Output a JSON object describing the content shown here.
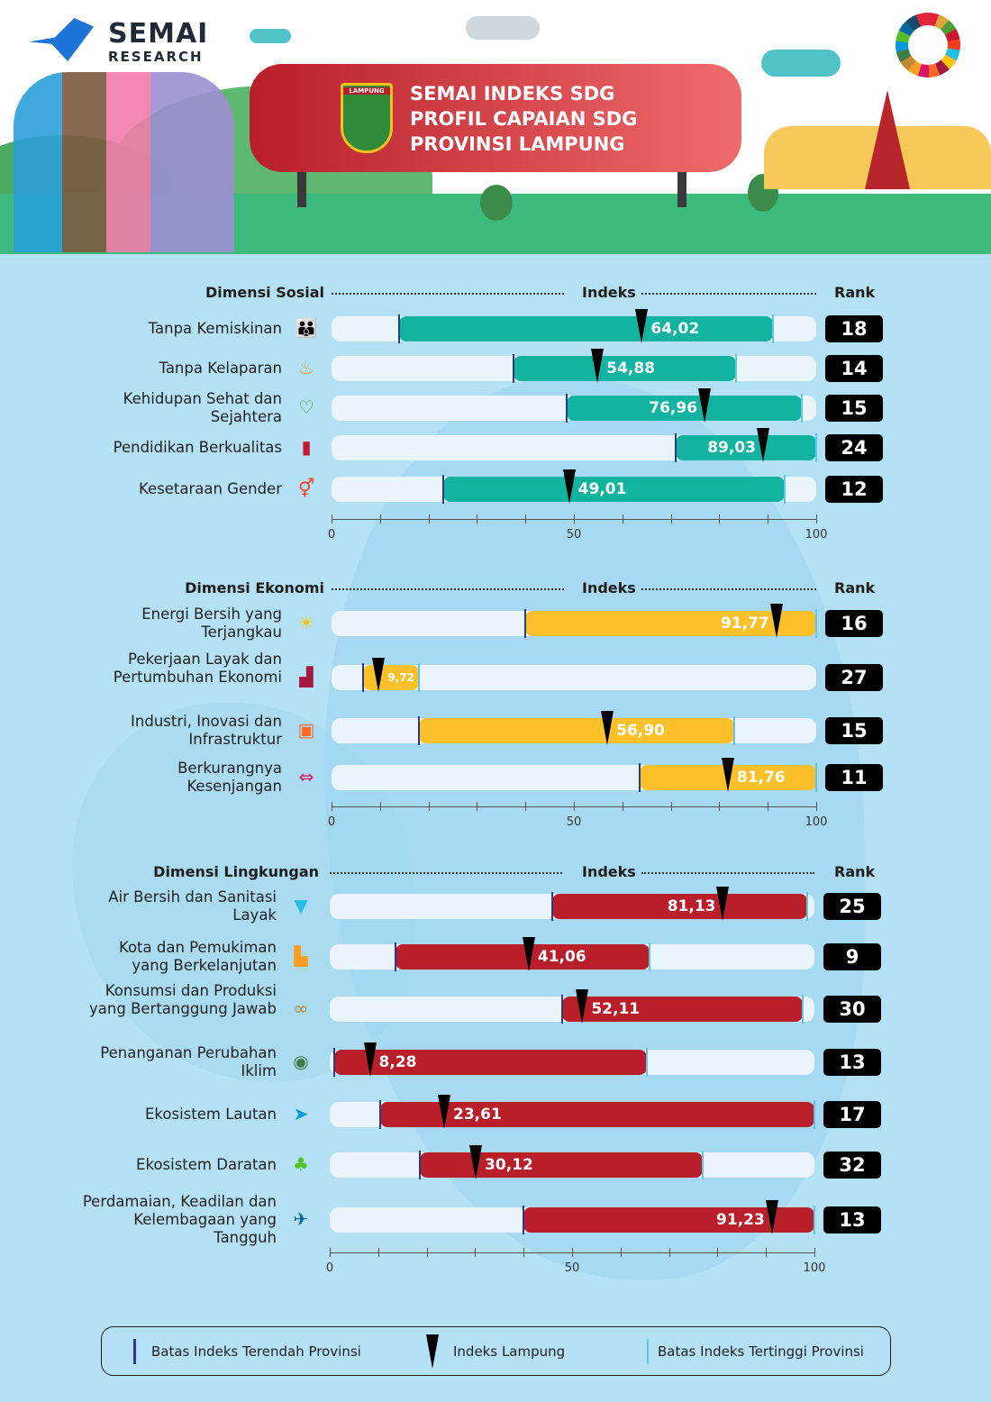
{
  "header": {
    "logo": {
      "name": "SEMAI",
      "sub": "RESEARCH"
    },
    "crest_text": "LAMPUNG",
    "title_lines": [
      "SEMAI INDEKS SDG",
      "PROFIL CAPAIAN SDG",
      "PROVINSI LAMPUNG"
    ]
  },
  "colors": {
    "sosial": "#12b3a0",
    "ekonomi": "#fcc02a",
    "lingkungan": "#b81f2b",
    "track": "#eaf5fb",
    "min_line": "#2a3a8a",
    "max_line": "#5ec6e8",
    "background": "#b4e1f5"
  },
  "chart_data": {
    "type": "range-bar",
    "xlim": [
      0,
      100
    ],
    "xticks": [
      "0",
      "50",
      "100"
    ],
    "column_index": "Indeks",
    "column_rank": "Rank",
    "sections": [
      {
        "title": "Dimensi Sosial",
        "color": "#12b3a0",
        "rows": [
          {
            "label": "Tanpa Kemiskinan",
            "icon": "people-icon",
            "min": 14,
            "max": 91,
            "value": 64.02,
            "value_label": "64,02",
            "rank": "18"
          },
          {
            "label": "Tanpa Kelaparan",
            "icon": "bowl-icon",
            "min": 37.5,
            "max": 83.5,
            "value": 54.88,
            "value_label": "54,88",
            "rank": "14"
          },
          {
            "label": "Kehidupan Sehat dan Sejahtera",
            "icon": "heartbeat-icon",
            "min": 48.5,
            "max": 97,
            "value": 76.96,
            "value_label": "76,96",
            "rank": "15"
          },
          {
            "label": "Pendidikan Berkualitas",
            "icon": "book-icon",
            "min": 71,
            "max": 100,
            "value": 89.03,
            "value_label": "89,03",
            "rank": "24"
          },
          {
            "label": "Kesetaraan Gender",
            "icon": "gender-icon",
            "min": 23,
            "max": 93.5,
            "value": 49.01,
            "value_label": "49,01",
            "rank": "12"
          }
        ]
      },
      {
        "title": "Dimensi Ekonomi",
        "color": "#fcc02a",
        "rows": [
          {
            "label": "Energi Bersih yang Terjangkau",
            "icon": "sun-icon",
            "min": 40,
            "max": 100,
            "value": 91.77,
            "value_label": "91,77",
            "rank": "16"
          },
          {
            "label": "Pekerjaan Layak dan Pertumbuhan Ekonomi",
            "icon": "growth-chart-icon",
            "min": 6.5,
            "max": 18,
            "value": 9.72,
            "value_label": "9,72",
            "rank": "27"
          },
          {
            "label": "Industri, Inovasi dan Infrastruktur",
            "icon": "cubes-icon",
            "min": 18,
            "max": 83,
            "value": 56.9,
            "value_label": "56,90",
            "rank": "15"
          },
          {
            "label": "Berkurangnya Kesenjangan",
            "icon": "equality-arrows-icon",
            "min": 63.5,
            "max": 100,
            "value": 81.76,
            "value_label": "81,76",
            "rank": "11"
          }
        ]
      },
      {
        "title": "Dimensi Lingkungan",
        "color": "#b81f2b",
        "rows": [
          {
            "label": "Air Bersih dan Sanitasi Layak",
            "icon": "water-drop-icon",
            "min": 46,
            "max": 98.5,
            "value": 81.13,
            "value_label": "81,13",
            "rank": "25"
          },
          {
            "label": "Kota dan Pemukiman yang Berkelanjutan",
            "icon": "city-icon",
            "min": 13.5,
            "max": 66,
            "value": 41.06,
            "value_label": "41,06",
            "rank": "9"
          },
          {
            "label": "Konsumsi dan Produksi yang Bertanggung Jawab",
            "icon": "infinity-icon",
            "min": 48,
            "max": 97.5,
            "value": 52.11,
            "value_label": "52,11",
            "rank": "30"
          },
          {
            "label": "Penanganan Perubahan Iklim",
            "icon": "eye-globe-icon",
            "min": 1,
            "max": 65.5,
            "value": 8.28,
            "value_label": "8,28",
            "rank": "13"
          },
          {
            "label": "Ekosistem Lautan",
            "icon": "fish-icon",
            "min": 10.5,
            "max": 100,
            "value": 23.61,
            "value_label": "23,61",
            "rank": "17"
          },
          {
            "label": "Ekosistem Daratan",
            "icon": "tree-icon",
            "min": 18.5,
            "max": 77,
            "value": 30.12,
            "value_label": "30,12",
            "rank": "32"
          },
          {
            "label": "Perdamaian, Keadilan dan Kelembagaan yang Tangguh",
            "icon": "dove-icon",
            "min": 40,
            "max": 100,
            "value": 91.23,
            "value_label": "91,23",
            "rank": "13"
          }
        ]
      }
    ]
  },
  "legend": {
    "min": "Batas Indeks Terendah Provinsi",
    "marker": "Indeks Lampung",
    "max": "Batas Indeks Tertinggi Provinsi"
  }
}
